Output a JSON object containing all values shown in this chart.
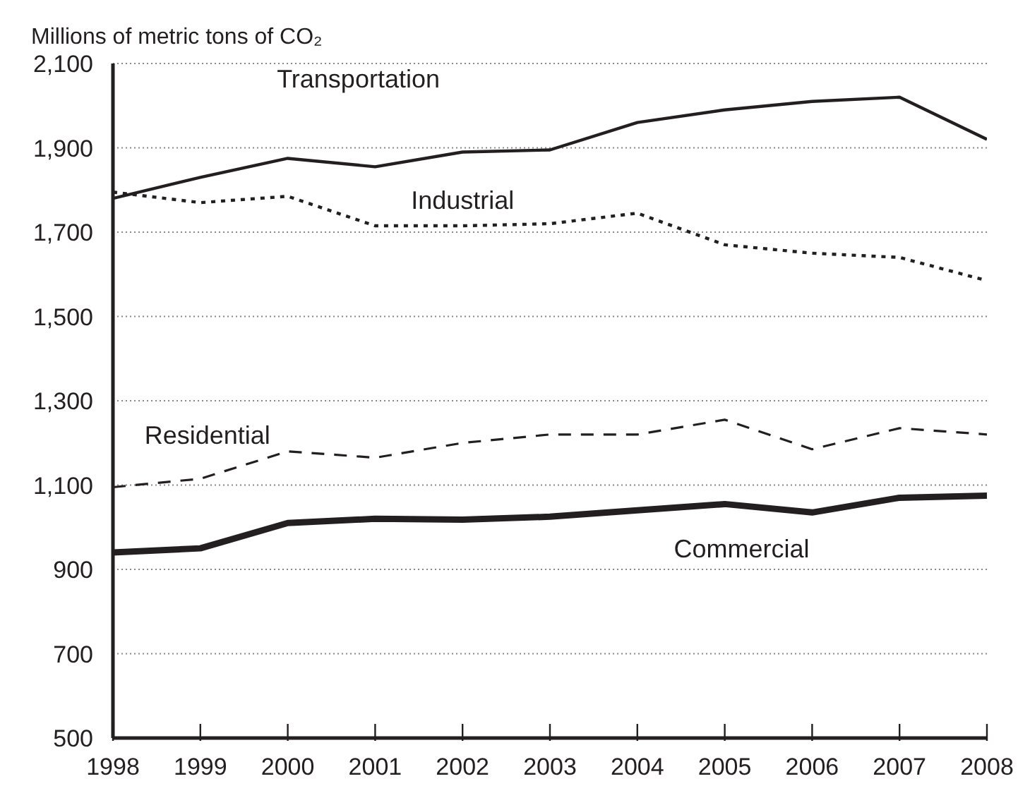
{
  "chart_data": {
    "type": "line",
    "ylabel": "Millions of metric tons of CO₂",
    "x": [
      1998,
      1999,
      2000,
      2001,
      2002,
      2003,
      2004,
      2005,
      2006,
      2007,
      2008
    ],
    "xlim": [
      1998,
      2008
    ],
    "xticks": [
      1998,
      1999,
      2000,
      2001,
      2002,
      2003,
      2004,
      2005,
      2006,
      2007,
      2008
    ],
    "ylim": [
      500,
      2100
    ],
    "yticks": [
      {
        "value": 500,
        "label": "500"
      },
      {
        "value": 700,
        "label": "700"
      },
      {
        "value": 900,
        "label": "900"
      },
      {
        "value": 1100,
        "label": "1,100"
      },
      {
        "value": 1300,
        "label": "1,300"
      },
      {
        "value": 1500,
        "label": "1,500"
      },
      {
        "value": 1700,
        "label": "1,700"
      },
      {
        "value": 1900,
        "label": "1,900"
      },
      {
        "value": 2100,
        "label": "2,100"
      }
    ],
    "grid": "y",
    "marker": "none",
    "series": [
      {
        "name": "Transportation",
        "color": "#231f20",
        "line_style": "solid",
        "values": [
          1780,
          1830,
          1875,
          1855,
          1890,
          1895,
          1960,
          1990,
          2010,
          2020,
          1920
        ]
      },
      {
        "name": "Industrial",
        "color": "#231f20",
        "line_style": "dotted",
        "values": [
          1795,
          1770,
          1785,
          1715,
          1715,
          1720,
          1745,
          1670,
          1650,
          1640,
          1585
        ]
      },
      {
        "name": "Residential",
        "color": "#231f20",
        "line_style": "dashed",
        "values": [
          1095,
          1115,
          1180,
          1165,
          1200,
          1220,
          1220,
          1255,
          1185,
          1235,
          1220
        ]
      },
      {
        "name": "Commercial",
        "color": "#231f20",
        "line_style": "solid",
        "values": [
          940,
          950,
          1010,
          1020,
          1018,
          1025,
          1040,
          1055,
          1035,
          1070,
          1075
        ]
      }
    ]
  }
}
